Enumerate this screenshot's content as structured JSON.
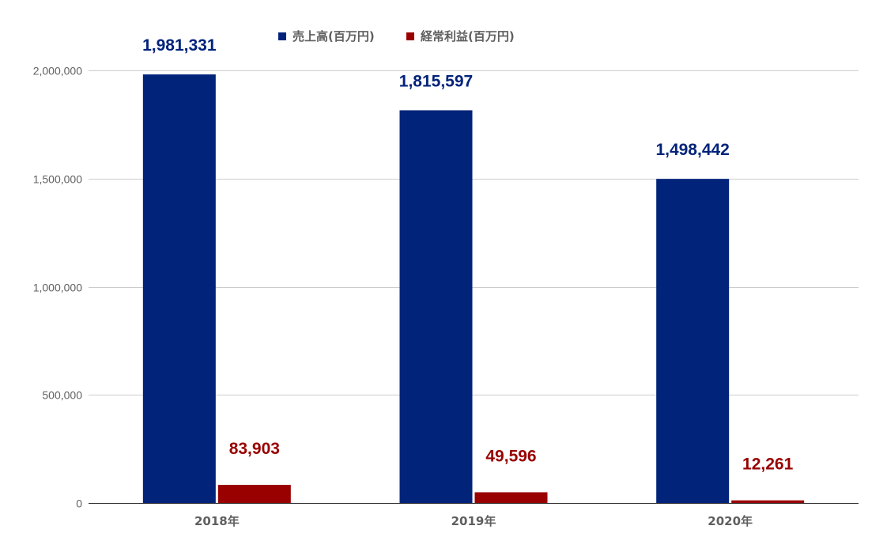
{
  "chart_data": {
    "type": "bar",
    "categories": [
      "2018年",
      "2019年",
      "2020年"
    ],
    "series": [
      {
        "name": "売上高(百万円)",
        "values": [
          1981331,
          1815597,
          1498442
        ],
        "color": "#01237a"
      },
      {
        "name": "経常利益(百万円)",
        "values": [
          83903,
          49596,
          12261
        ],
        "color": "#990000"
      }
    ],
    "data_labels": [
      [
        "1,981,331",
        "1,815,597",
        "1,498,442"
      ],
      [
        "83,903",
        "49,596",
        "12,261"
      ]
    ],
    "ylim": [
      0,
      2000000
    ],
    "yticks": [
      0,
      500000,
      1000000,
      1500000,
      2000000
    ],
    "ytick_labels": [
      "0",
      "500,000",
      "1,000,000",
      "1,500,000",
      "2,000,000"
    ],
    "legend_position": "top",
    "grid": true,
    "title": "",
    "xlabel": "",
    "ylabel": ""
  }
}
